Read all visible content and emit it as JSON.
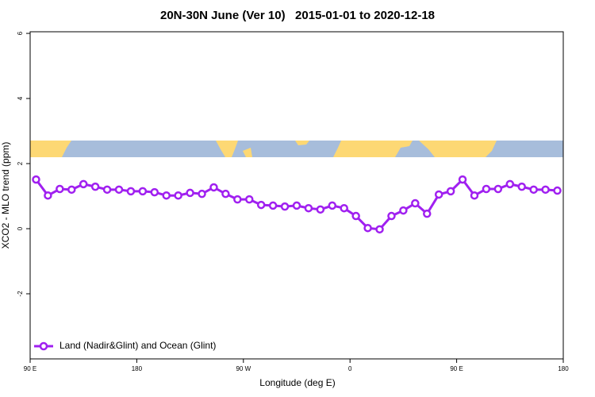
{
  "chart_data": {
    "type": "line",
    "title": "20N-30N June (Ver 10)   2015-01-01 to 2020-12-18",
    "x_label": "Longitude (deg E)",
    "y_label": "XCO2 - MLO trend (ppm)",
    "x": [
      95,
      105,
      115,
      125,
      135,
      145,
      155,
      165,
      175,
      185,
      195,
      205,
      215,
      225,
      235,
      245,
      255,
      265,
      275,
      285,
      295,
      305,
      315,
      325,
      335,
      345,
      355,
      365,
      375,
      385,
      395,
      405,
      415,
      425,
      435,
      445,
      455,
      465,
      475,
      485,
      495,
      505,
      515,
      525,
      535
    ],
    "series": [
      {
        "name": "Land (Nadir&Glint) and Ocean (Glint)",
        "color": "#a020f0",
        "values": [
          1.51,
          1.02,
          1.22,
          1.2,
          1.37,
          1.29,
          1.2,
          1.2,
          1.15,
          1.15,
          1.12,
          1.02,
          1.02,
          1.1,
          1.07,
          1.27,
          1.07,
          0.9,
          0.9,
          0.73,
          0.71,
          0.68,
          0.71,
          0.63,
          0.59,
          0.71,
          0.63,
          0.39,
          0.02,
          -0.02,
          0.39,
          0.56,
          0.78,
          0.46,
          1.05,
          1.15,
          1.51,
          1.02,
          1.22,
          1.22,
          1.37,
          1.29,
          1.2,
          1.2,
          1.17
        ]
      }
    ],
    "xlim": [
      90,
      540
    ],
    "xticks": [
      {
        "value": 90,
        "label": "90 E"
      },
      180,
      {
        "value": 270,
        "label": "90 W"
      },
      {
        "value": 360,
        "label": "0"
      },
      {
        "value": 450,
        "label": "90 E"
      },
      {
        "value": 540,
        "label": "180"
      }
    ],
    "ylim": [
      -4,
      6.05
    ],
    "yticks": [
      -2,
      0,
      2,
      4,
      6
    ],
    "legend": "bottom-left"
  }
}
